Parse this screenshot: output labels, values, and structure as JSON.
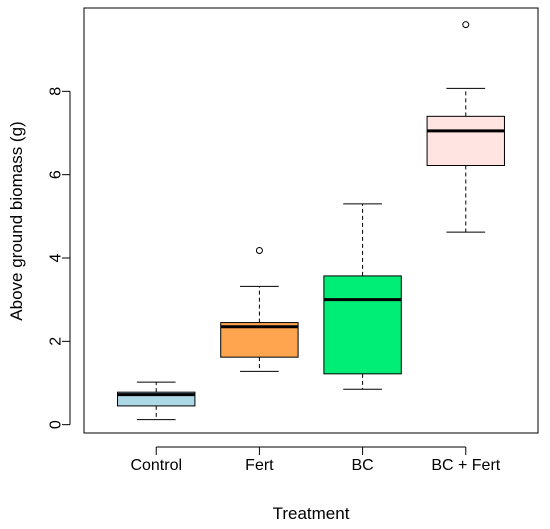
{
  "chart_data": {
    "type": "box",
    "xlabel": "Treatment",
    "ylabel": "Above ground biomass (g)",
    "ylim": [
      -0.2,
      10.0
    ],
    "yticks": [
      0,
      2,
      4,
      6,
      8
    ],
    "grid": false,
    "legend": "none",
    "categories": [
      "Control",
      "Fert",
      "BC",
      "BC + Fert"
    ],
    "boxes": [
      {
        "category": "Control",
        "whisker_low": 0.12,
        "q1": 0.45,
        "median": 0.72,
        "q3": 0.78,
        "whisker_high": 1.02,
        "outliers": [],
        "color": "#add8e6"
      },
      {
        "category": "Fert",
        "whisker_low": 1.28,
        "q1": 1.62,
        "median": 2.35,
        "q3": 2.45,
        "whisker_high": 3.32,
        "outliers": [
          4.18
        ],
        "color": "#ffa54f"
      },
      {
        "category": "BC",
        "whisker_low": 0.85,
        "q1": 1.22,
        "median": 3.0,
        "q3": 3.57,
        "whisker_high": 5.3,
        "outliers": [],
        "color": "#00ee76"
      },
      {
        "category": "BC + Fert",
        "whisker_low": 4.62,
        "q1": 6.22,
        "median": 7.05,
        "q3": 7.4,
        "whisker_high": 8.07,
        "outliers": [
          9.6
        ],
        "color": "#ffe4e1"
      }
    ]
  }
}
